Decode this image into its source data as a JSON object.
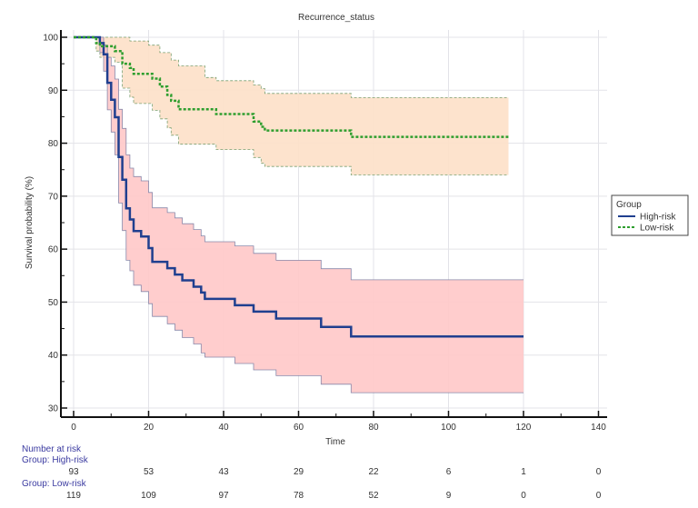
{
  "chart_data": {
    "type": "line",
    "subtype": "kaplan-meier",
    "title": "Recurrence_status",
    "xlabel": "Time",
    "ylabel": "Survival probability (%)",
    "xlim": [
      0,
      140
    ],
    "ylim": [
      30,
      100
    ],
    "x_ticks": [
      0,
      20,
      40,
      60,
      80,
      100,
      120,
      140
    ],
    "y_ticks": [
      30,
      40,
      50,
      60,
      70,
      80,
      90,
      100
    ],
    "grid": true,
    "legend": {
      "title": "Group",
      "placement": "right",
      "entries": [
        {
          "label": "High-risk",
          "style": "solid",
          "color": "#1f3f8f"
        },
        {
          "label": "Low-risk",
          "style": "dashed",
          "color": "#2e9e2e"
        }
      ]
    },
    "series": [
      {
        "name": "High-risk",
        "color": "#1f3f8f",
        "band_color": "#ffc8c8",
        "band_edge_color": "#8888aa",
        "end_time": 120,
        "steps": [
          [
            0,
            100
          ],
          [
            6,
            100
          ],
          [
            7,
            98.9
          ],
          [
            8,
            96.8
          ],
          [
            9,
            91.4
          ],
          [
            10,
            88.2
          ],
          [
            11,
            84.9
          ],
          [
            12,
            77.4
          ],
          [
            13,
            73.1
          ],
          [
            14,
            67.7
          ],
          [
            15,
            65.6
          ],
          [
            16,
            63.4
          ],
          [
            18,
            62.4
          ],
          [
            20,
            60.2
          ],
          [
            21,
            57.6
          ],
          [
            25,
            56.4
          ],
          [
            27,
            55.2
          ],
          [
            29,
            54.1
          ],
          [
            32,
            52.9
          ],
          [
            34,
            51.8
          ],
          [
            35,
            50.6
          ],
          [
            43,
            49.4
          ],
          [
            48,
            48.2
          ],
          [
            54,
            46.9
          ],
          [
            66,
            45.3
          ],
          [
            74,
            43.5
          ]
        ],
        "upper": [
          [
            0,
            100
          ],
          [
            6,
            100
          ],
          [
            7,
            100
          ],
          [
            8,
            98.5
          ],
          [
            9,
            96.2
          ],
          [
            10,
            94.6
          ],
          [
            11,
            92.1
          ],
          [
            12,
            86.4
          ],
          [
            13,
            82.8
          ],
          [
            14,
            77.8
          ],
          [
            15,
            75.3
          ],
          [
            16,
            73.7
          ],
          [
            18,
            72.9
          ],
          [
            20,
            70.7
          ],
          [
            21,
            67.8
          ],
          [
            25,
            66.9
          ],
          [
            27,
            65.9
          ],
          [
            29,
            64.8
          ],
          [
            32,
            63.7
          ],
          [
            34,
            62.5
          ],
          [
            35,
            61.4
          ],
          [
            43,
            60.6
          ],
          [
            48,
            59.2
          ],
          [
            54,
            57.9
          ],
          [
            66,
            56.3
          ],
          [
            74,
            54.2
          ]
        ],
        "lower": [
          [
            0,
            100
          ],
          [
            6,
            100
          ],
          [
            7,
            97.1
          ],
          [
            8,
            93.6
          ],
          [
            9,
            86.3
          ],
          [
            10,
            82.1
          ],
          [
            11,
            77.8
          ],
          [
            12,
            68.7
          ],
          [
            13,
            63.5
          ],
          [
            14,
            57.9
          ],
          [
            15,
            55.9
          ],
          [
            16,
            53.2
          ],
          [
            18,
            52.0
          ],
          [
            20,
            49.7
          ],
          [
            21,
            47.3
          ],
          [
            25,
            45.9
          ],
          [
            27,
            44.7
          ],
          [
            29,
            43.3
          ],
          [
            32,
            42.1
          ],
          [
            34,
            40.4
          ],
          [
            35,
            39.6
          ],
          [
            43,
            38.4
          ],
          [
            48,
            37.2
          ],
          [
            54,
            36.1
          ],
          [
            66,
            34.5
          ],
          [
            74,
            32.9
          ]
        ]
      },
      {
        "name": "Low-risk",
        "color": "#2e9e2e",
        "band_color": "#fde0c8",
        "band_edge_color": "#7aa070",
        "end_time": 116,
        "steps": [
          [
            0,
            100
          ],
          [
            5,
            100
          ],
          [
            6,
            98.9
          ],
          [
            7,
            98.3
          ],
          [
            11,
            97.4
          ],
          [
            13,
            95.0
          ],
          [
            15,
            94.2
          ],
          [
            16,
            93.1
          ],
          [
            21,
            92.2
          ],
          [
            23,
            90.7
          ],
          [
            25,
            89.1
          ],
          [
            26,
            88.0
          ],
          [
            28,
            86.4
          ],
          [
            38,
            85.5
          ],
          [
            48,
            84.1
          ],
          [
            50,
            83.1
          ],
          [
            51,
            82.4
          ],
          [
            74,
            81.2
          ]
        ],
        "upper": [
          [
            0,
            100
          ],
          [
            5,
            100
          ],
          [
            13,
            100
          ],
          [
            15,
            99.3
          ],
          [
            20,
            98.5
          ],
          [
            23,
            97.1
          ],
          [
            26,
            95.7
          ],
          [
            28,
            94.6
          ],
          [
            35,
            92.4
          ],
          [
            38,
            91.8
          ],
          [
            48,
            91.0
          ],
          [
            50,
            90.3
          ],
          [
            51,
            89.4
          ],
          [
            74,
            88.6
          ]
        ],
        "lower": [
          [
            0,
            100
          ],
          [
            5,
            100
          ],
          [
            6,
            97.4
          ],
          [
            7,
            96.2
          ],
          [
            11,
            95.3
          ],
          [
            13,
            90.4
          ],
          [
            15,
            88.7
          ],
          [
            16,
            87.5
          ],
          [
            21,
            86.2
          ],
          [
            23,
            84.6
          ],
          [
            25,
            82.9
          ],
          [
            26,
            81.5
          ],
          [
            28,
            79.8
          ],
          [
            38,
            78.8
          ],
          [
            48,
            77.3
          ],
          [
            50,
            76.2
          ],
          [
            51,
            75.6
          ],
          [
            74,
            74.0
          ]
        ]
      }
    ],
    "number_at_risk": {
      "heading": "Number at risk",
      "times": [
        0,
        20,
        40,
        60,
        80,
        100,
        120,
        140
      ],
      "groups": [
        {
          "label": "Group: High-risk",
          "values": [
            93,
            53,
            43,
            29,
            22,
            6,
            1,
            0
          ]
        },
        {
          "label": "Group: Low-risk",
          "values": [
            119,
            109,
            97,
            78,
            52,
            9,
            0,
            0
          ]
        }
      ]
    }
  }
}
